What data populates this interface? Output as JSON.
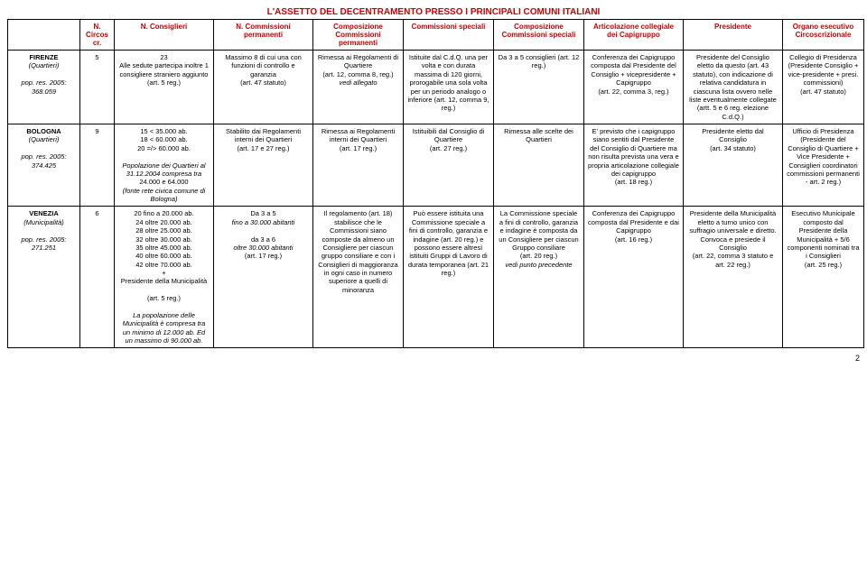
{
  "title": "L'ASSETTO DEL DECENTRAMENTO PRESSO I PRINCIPALI COMUNI ITALIANI",
  "page_number": "2",
  "columns": [
    "",
    "N. Circoscr.",
    "N. Consiglieri",
    "N. Commissioni permanenti",
    "Composizione Commissioni permanenti",
    "Commissioni speciali",
    "Composizione Commissioni speciali",
    "Articolazione collegiale dei Capigruppo",
    "Presidente",
    "Organo esecutivo Circoscrizionale"
  ],
  "col_widths": [
    "80",
    "38",
    "110",
    "110",
    "100",
    "100",
    "100",
    "110",
    "110",
    "90"
  ],
  "rows": [
    {
      "label_main": "FIRENZE",
      "label_sub": "(Quartieri)",
      "label_pop": "pop. res. 2005: 368.059",
      "c1": "5",
      "c2": "23\nAlle sedute partecipa inoltre 1 consigliere straniero aggiunto (art. 5 reg.)",
      "c3": "Massimo 8 di cui una con funzioni di controllo e garanzia\n(art. 47 statuto)",
      "c4": "Rimessa ai Regolamenti di Quartiere\n(art. 12, comma 8, reg.)\nvedi allegato",
      "c5": "Istituite dal C.d.Q. una per volta e con durata massima di 120 giorni, prorogabile una sola volta per un periodo analogo o inferiore (art. 12, comma 9, reg.)",
      "c6": "Da 3 a 5 consiglieri (art. 12 reg.)",
      "c7": "Conferenza dei Capigruppo composta dal Presidente del Consiglio + vicepresidente + Capigruppo\n(art. 22, comma 3, reg.)",
      "c8": "Presidente del Consiglio eletto da questo (art. 43 statuto), con indicazione di relativa candidatura in ciascuna lista ovvero nelle liste eventualmente collegate\n(artt. 5 e 6 reg. elezione C.d.Q.)",
      "c9": "Collegio di Presidenza\n(Presidente Consiglio + vice-presidente + presi. commissioni)\n(art. 47 statuto)"
    },
    {
      "label_main": "BOLOGNA",
      "label_sub": "(Quartieri)",
      "label_pop": "pop. res. 2005: 374.425",
      "c1": "9",
      "c2": "15 < 35.000 ab.\n18 < 60.000 ab.\n20 =/> 60.000 ab.\n\nPopolazione dei Quartieri al 31.12.2004 compresa tra\n24.000 e 64.000\n(fonte rete civica comune di Bologna)",
      "c3": "Stabilito dai Regolamenti interni dei Quartieri\n(art. 17 e 27 reg.)",
      "c4": "Rimessa ai Regolamenti interni dei Quartieri\n(art. 17 reg.)",
      "c5": "Istituibili dal Consiglio di Quartiere\n(art. 27 reg.)",
      "c6": "Rimessa alle scelte dei Quartieri",
      "c7": "E' previsto che i capigruppo siano sentiti dal Presidente del Consiglio di Quartiere ma non risulta prevista una vera e propria articolazione collegiale dei capigruppo\n(art. 18 reg.)",
      "c8": "Presidente eletto dal Consiglio\n(art. 34 statuto)",
      "c9": "Ufficio di Presidenza\n(Presidente del Consiglio di Quartiere + Vice Presidente + Consiglieri coordinatori commissioni permanenti - art. 2 reg.)"
    },
    {
      "label_main": "VENEZIA",
      "label_sub": "(Municipalità)",
      "label_pop": "pop. res. 2005: 271.251",
      "c1": "6",
      "c2": "20 fino a 20.000 ab.\n24 oltre 20.000 ab.\n28 oltre 25.000 ab.\n32 oltre 30.000 ab.\n35 oltre 45.000 ab.\n40 oltre 60.000 ab.\n42 oltre 70.000 ab.\n+\nPresidente della Municipalità\n\n(art. 5 reg.)\n\nLa popolazione delle Municipalità è compresa tra un minimo di 12.000 ab. Ed un massimo di 90.000 ab.",
      "c3": "Da 3 a 5\nfino a 30.000 abitanti\n\nda 3 a 6\noltre 30.000 abitanti\n(art. 17 reg.)",
      "c4": "Il regolamento (art. 18) stabilisce che le Commissioni siano composte da almeno un Consigliere per ciascun gruppo consiliare e con i Consiglieri di maggioranza in ogni caso in numero superiore a quelli di minoranza",
      "c5": "Può essere istituita una Commissione speciale a fini di controllo, garanzia e indagine (art. 20 reg.) e possono essere altresì istituiti Gruppi di Lavoro di durata temporanea (art. 21 reg.)",
      "c6": "La Commissione speciale a fini di controllo, garanzia e indagine è composta da un Consigliere per ciascun Gruppo consiliare\n(art. 20 reg.)\nvedi punto precedente",
      "c7": "Conferenza dei Capigruppo composta dal Presidente e dai Capigruppo\n(art. 16 reg.)",
      "c8": "Presidente della Municipalità eletto a turno unico con suffragio universale e diretto. Convoca e presiede il Consiglio\n(art. 22, comma 3 statuto e art. 22 reg.)",
      "c9": "Esecutivo Municipale composto dal Presidente della Municipalità + 5/6 componenti nominati tra i Consiglieri\n(art. 25 reg.)"
    }
  ]
}
